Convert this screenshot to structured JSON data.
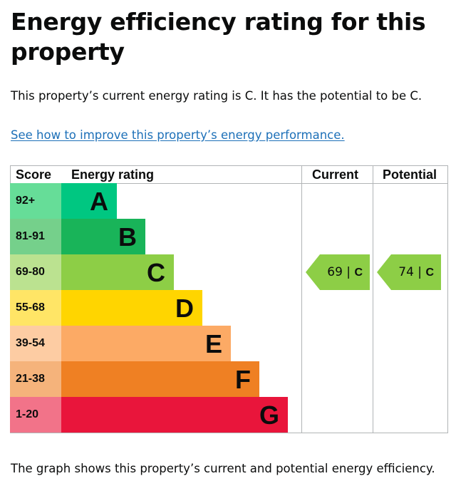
{
  "page": {
    "title": "Energy efficiency rating for this property",
    "summary": "This property’s current energy rating is C. It has the potential to be C.",
    "improve_link": "See how to improve this property’s energy performance.",
    "footer": "The graph shows this property’s current and potential energy efficiency."
  },
  "chart_data": {
    "type": "table",
    "headers": {
      "score": "Score",
      "rating": "Energy rating",
      "current": "Current",
      "potential": "Potential"
    },
    "bands": [
      {
        "score": "92+",
        "letter": "A",
        "color": "#00c781",
        "score_bg": "#66dd98"
      },
      {
        "score": "81-91",
        "letter": "B",
        "color": "#19b459",
        "score_bg": "#75d08b"
      },
      {
        "score": "69-80",
        "letter": "C",
        "color": "#8dce46",
        "score_bg": "#bbe290"
      },
      {
        "score": "55-68",
        "letter": "D",
        "color": "#ffd500",
        "score_bg": "#ffe566"
      },
      {
        "score": "39-54",
        "letter": "E",
        "color": "#fcaa65",
        "score_bg": "#fdcca3"
      },
      {
        "score": "21-38",
        "letter": "F",
        "color": "#ef8023",
        "score_bg": "#f5b37b"
      },
      {
        "score": "1-20",
        "letter": "G",
        "color": "#e9153b",
        "score_bg": "#f27389"
      }
    ],
    "current": {
      "score": "69",
      "separator": "|",
      "letter": "C",
      "band_index": 2,
      "color": "#8dce46"
    },
    "potential": {
      "score": "74",
      "separator": "|",
      "letter": "C",
      "band_index": 2,
      "color": "#8dce46"
    }
  }
}
